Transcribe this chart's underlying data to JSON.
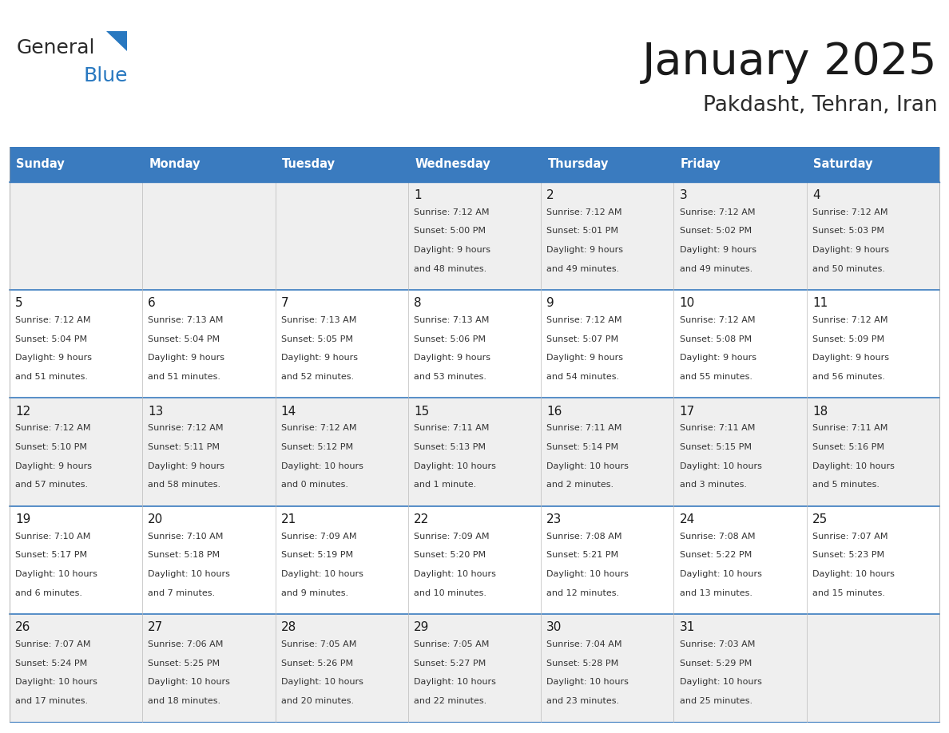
{
  "title": "January 2025",
  "subtitle": "Pakdasht, Tehran, Iran",
  "header_color": "#3a7bbf",
  "header_text_color": "#ffffff",
  "row_bg_odd": "#efefef",
  "row_bg_even": "#ffffff",
  "border_color": "#3a7bbf",
  "thin_line_color": "#3a7bbf",
  "day_names": [
    "Sunday",
    "Monday",
    "Tuesday",
    "Wednesday",
    "Thursday",
    "Friday",
    "Saturday"
  ],
  "days": [
    {
      "day": 1,
      "col": 3,
      "row": 0,
      "sunrise": "7:12 AM",
      "sunset": "5:00 PM",
      "daylight_h": "9 hours",
      "daylight_m": "and 48 minutes."
    },
    {
      "day": 2,
      "col": 4,
      "row": 0,
      "sunrise": "7:12 AM",
      "sunset": "5:01 PM",
      "daylight_h": "9 hours",
      "daylight_m": "and 49 minutes."
    },
    {
      "day": 3,
      "col": 5,
      "row": 0,
      "sunrise": "7:12 AM",
      "sunset": "5:02 PM",
      "daylight_h": "9 hours",
      "daylight_m": "and 49 minutes."
    },
    {
      "day": 4,
      "col": 6,
      "row": 0,
      "sunrise": "7:12 AM",
      "sunset": "5:03 PM",
      "daylight_h": "9 hours",
      "daylight_m": "and 50 minutes."
    },
    {
      "day": 5,
      "col": 0,
      "row": 1,
      "sunrise": "7:12 AM",
      "sunset": "5:04 PM",
      "daylight_h": "9 hours",
      "daylight_m": "and 51 minutes."
    },
    {
      "day": 6,
      "col": 1,
      "row": 1,
      "sunrise": "7:13 AM",
      "sunset": "5:04 PM",
      "daylight_h": "9 hours",
      "daylight_m": "and 51 minutes."
    },
    {
      "day": 7,
      "col": 2,
      "row": 1,
      "sunrise": "7:13 AM",
      "sunset": "5:05 PM",
      "daylight_h": "9 hours",
      "daylight_m": "and 52 minutes."
    },
    {
      "day": 8,
      "col": 3,
      "row": 1,
      "sunrise": "7:13 AM",
      "sunset": "5:06 PM",
      "daylight_h": "9 hours",
      "daylight_m": "and 53 minutes."
    },
    {
      "day": 9,
      "col": 4,
      "row": 1,
      "sunrise": "7:12 AM",
      "sunset": "5:07 PM",
      "daylight_h": "9 hours",
      "daylight_m": "and 54 minutes."
    },
    {
      "day": 10,
      "col": 5,
      "row": 1,
      "sunrise": "7:12 AM",
      "sunset": "5:08 PM",
      "daylight_h": "9 hours",
      "daylight_m": "and 55 minutes."
    },
    {
      "day": 11,
      "col": 6,
      "row": 1,
      "sunrise": "7:12 AM",
      "sunset": "5:09 PM",
      "daylight_h": "9 hours",
      "daylight_m": "and 56 minutes."
    },
    {
      "day": 12,
      "col": 0,
      "row": 2,
      "sunrise": "7:12 AM",
      "sunset": "5:10 PM",
      "daylight_h": "9 hours",
      "daylight_m": "and 57 minutes."
    },
    {
      "day": 13,
      "col": 1,
      "row": 2,
      "sunrise": "7:12 AM",
      "sunset": "5:11 PM",
      "daylight_h": "9 hours",
      "daylight_m": "and 58 minutes."
    },
    {
      "day": 14,
      "col": 2,
      "row": 2,
      "sunrise": "7:12 AM",
      "sunset": "5:12 PM",
      "daylight_h": "10 hours",
      "daylight_m": "and 0 minutes."
    },
    {
      "day": 15,
      "col": 3,
      "row": 2,
      "sunrise": "7:11 AM",
      "sunset": "5:13 PM",
      "daylight_h": "10 hours",
      "daylight_m": "and 1 minute."
    },
    {
      "day": 16,
      "col": 4,
      "row": 2,
      "sunrise": "7:11 AM",
      "sunset": "5:14 PM",
      "daylight_h": "10 hours",
      "daylight_m": "and 2 minutes."
    },
    {
      "day": 17,
      "col": 5,
      "row": 2,
      "sunrise": "7:11 AM",
      "sunset": "5:15 PM",
      "daylight_h": "10 hours",
      "daylight_m": "and 3 minutes."
    },
    {
      "day": 18,
      "col": 6,
      "row": 2,
      "sunrise": "7:11 AM",
      "sunset": "5:16 PM",
      "daylight_h": "10 hours",
      "daylight_m": "and 5 minutes."
    },
    {
      "day": 19,
      "col": 0,
      "row": 3,
      "sunrise": "7:10 AM",
      "sunset": "5:17 PM",
      "daylight_h": "10 hours",
      "daylight_m": "and 6 minutes."
    },
    {
      "day": 20,
      "col": 1,
      "row": 3,
      "sunrise": "7:10 AM",
      "sunset": "5:18 PM",
      "daylight_h": "10 hours",
      "daylight_m": "and 7 minutes."
    },
    {
      "day": 21,
      "col": 2,
      "row": 3,
      "sunrise": "7:09 AM",
      "sunset": "5:19 PM",
      "daylight_h": "10 hours",
      "daylight_m": "and 9 minutes."
    },
    {
      "day": 22,
      "col": 3,
      "row": 3,
      "sunrise": "7:09 AM",
      "sunset": "5:20 PM",
      "daylight_h": "10 hours",
      "daylight_m": "and 10 minutes."
    },
    {
      "day": 23,
      "col": 4,
      "row": 3,
      "sunrise": "7:08 AM",
      "sunset": "5:21 PM",
      "daylight_h": "10 hours",
      "daylight_m": "and 12 minutes."
    },
    {
      "day": 24,
      "col": 5,
      "row": 3,
      "sunrise": "7:08 AM",
      "sunset": "5:22 PM",
      "daylight_h": "10 hours",
      "daylight_m": "and 13 minutes."
    },
    {
      "day": 25,
      "col": 6,
      "row": 3,
      "sunrise": "7:07 AM",
      "sunset": "5:23 PM",
      "daylight_h": "10 hours",
      "daylight_m": "and 15 minutes."
    },
    {
      "day": 26,
      "col": 0,
      "row": 4,
      "sunrise": "7:07 AM",
      "sunset": "5:24 PM",
      "daylight_h": "10 hours",
      "daylight_m": "and 17 minutes."
    },
    {
      "day": 27,
      "col": 1,
      "row": 4,
      "sunrise": "7:06 AM",
      "sunset": "5:25 PM",
      "daylight_h": "10 hours",
      "daylight_m": "and 18 minutes."
    },
    {
      "day": 28,
      "col": 2,
      "row": 4,
      "sunrise": "7:05 AM",
      "sunset": "5:26 PM",
      "daylight_h": "10 hours",
      "daylight_m": "and 20 minutes."
    },
    {
      "day": 29,
      "col": 3,
      "row": 4,
      "sunrise": "7:05 AM",
      "sunset": "5:27 PM",
      "daylight_h": "10 hours",
      "daylight_m": "and 22 minutes."
    },
    {
      "day": 30,
      "col": 4,
      "row": 4,
      "sunrise": "7:04 AM",
      "sunset": "5:28 PM",
      "daylight_h": "10 hours",
      "daylight_m": "and 23 minutes."
    },
    {
      "day": 31,
      "col": 5,
      "row": 4,
      "sunrise": "7:03 AM",
      "sunset": "5:29 PM",
      "daylight_h": "10 hours",
      "daylight_m": "and 25 minutes."
    }
  ],
  "logo_text1": "General",
  "logo_text2": "Blue",
  "logo_color1": "#2b2b2b",
  "logo_color2": "#2878c0",
  "logo_tri_color": "#2878c0",
  "title_color": "#1a1a1a",
  "subtitle_color": "#2b2b2b",
  "day_num_color": "#1a1a1a",
  "cell_text_color": "#333333"
}
